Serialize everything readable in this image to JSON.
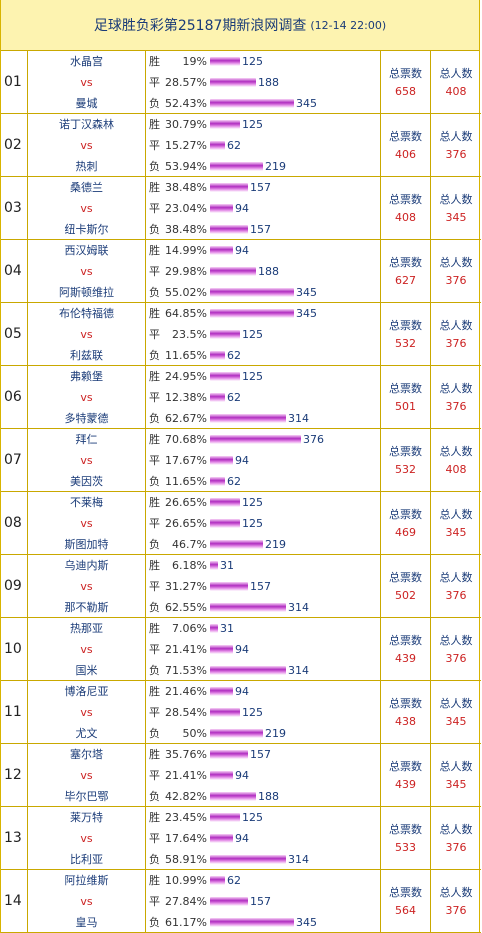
{
  "header": {
    "title": "足球胜负彩第25187期新浪网调查",
    "date": "(12-14 22:00)"
  },
  "labels": {
    "win": "胜",
    "draw": "平",
    "loss": "负",
    "vs": "vs",
    "total_votes": "总票数",
    "total_people": "总人数"
  },
  "colors": {
    "title_bg": "#fdf3b0",
    "border": "#c9a800",
    "team_text": "#1a3b78",
    "accent_red": "#cc2222",
    "bar": "#c64bd6"
  },
  "matches": [
    {
      "idx": "01",
      "home": "水晶宫",
      "away": "曼城",
      "win": {
        "pct": "19%",
        "count": 125
      },
      "draw": {
        "pct": "28.57%",
        "count": 188
      },
      "loss": {
        "pct": "52.43%",
        "count": 345
      },
      "total_votes": "658",
      "total_people": "408"
    },
    {
      "idx": "02",
      "home": "诺丁汉森林",
      "away": "热刺",
      "win": {
        "pct": "30.79%",
        "count": 125
      },
      "draw": {
        "pct": "15.27%",
        "count": 62
      },
      "loss": {
        "pct": "53.94%",
        "count": 219
      },
      "total_votes": "406",
      "total_people": "376"
    },
    {
      "idx": "03",
      "home": "桑德兰",
      "away": "纽卡斯尔",
      "win": {
        "pct": "38.48%",
        "count": 157
      },
      "draw": {
        "pct": "23.04%",
        "count": 94
      },
      "loss": {
        "pct": "38.48%",
        "count": 157
      },
      "total_votes": "408",
      "total_people": "345"
    },
    {
      "idx": "04",
      "home": "西汉姆联",
      "away": "阿斯顿维拉",
      "win": {
        "pct": "14.99%",
        "count": 94
      },
      "draw": {
        "pct": "29.98%",
        "count": 188
      },
      "loss": {
        "pct": "55.02%",
        "count": 345
      },
      "total_votes": "627",
      "total_people": "376"
    },
    {
      "idx": "05",
      "home": "布伦特福德",
      "away": "利兹联",
      "win": {
        "pct": "64.85%",
        "count": 345
      },
      "draw": {
        "pct": "23.5%",
        "count": 125
      },
      "loss": {
        "pct": "11.65%",
        "count": 62
      },
      "total_votes": "532",
      "total_people": "376"
    },
    {
      "idx": "06",
      "home": "弗赖堡",
      "away": "多特蒙德",
      "win": {
        "pct": "24.95%",
        "count": 125
      },
      "draw": {
        "pct": "12.38%",
        "count": 62
      },
      "loss": {
        "pct": "62.67%",
        "count": 314
      },
      "total_votes": "501",
      "total_people": "376"
    },
    {
      "idx": "07",
      "home": "拜仁",
      "away": "美因茨",
      "win": {
        "pct": "70.68%",
        "count": 376
      },
      "draw": {
        "pct": "17.67%",
        "count": 94
      },
      "loss": {
        "pct": "11.65%",
        "count": 62
      },
      "total_votes": "532",
      "total_people": "408"
    },
    {
      "idx": "08",
      "home": "不莱梅",
      "away": "斯图加特",
      "win": {
        "pct": "26.65%",
        "count": 125
      },
      "draw": {
        "pct": "26.65%",
        "count": 125
      },
      "loss": {
        "pct": "46.7%",
        "count": 219
      },
      "total_votes": "469",
      "total_people": "345"
    },
    {
      "idx": "09",
      "home": "乌迪内斯",
      "away": "那不勒斯",
      "win": {
        "pct": "6.18%",
        "count": 31
      },
      "draw": {
        "pct": "31.27%",
        "count": 157
      },
      "loss": {
        "pct": "62.55%",
        "count": 314
      },
      "total_votes": "502",
      "total_people": "376"
    },
    {
      "idx": "10",
      "home": "热那亚",
      "away": "国米",
      "win": {
        "pct": "7.06%",
        "count": 31
      },
      "draw": {
        "pct": "21.41%",
        "count": 94
      },
      "loss": {
        "pct": "71.53%",
        "count": 314
      },
      "total_votes": "439",
      "total_people": "376"
    },
    {
      "idx": "11",
      "home": "博洛尼亚",
      "away": "尤文",
      "win": {
        "pct": "21.46%",
        "count": 94
      },
      "draw": {
        "pct": "28.54%",
        "count": 125
      },
      "loss": {
        "pct": "50%",
        "count": 219
      },
      "total_votes": "438",
      "total_people": "345"
    },
    {
      "idx": "12",
      "home": "塞尔塔",
      "away": "毕尔巴鄂",
      "win": {
        "pct": "35.76%",
        "count": 157
      },
      "draw": {
        "pct": "21.41%",
        "count": 94
      },
      "loss": {
        "pct": "42.82%",
        "count": 188
      },
      "total_votes": "439",
      "total_people": "345"
    },
    {
      "idx": "13",
      "home": "莱万特",
      "away": "比利亚",
      "win": {
        "pct": "23.45%",
        "count": 125
      },
      "draw": {
        "pct": "17.64%",
        "count": 94
      },
      "loss": {
        "pct": "58.91%",
        "count": 314
      },
      "total_votes": "533",
      "total_people": "376"
    },
    {
      "idx": "14",
      "home": "阿拉维斯",
      "away": "皇马",
      "win": {
        "pct": "10.99%",
        "count": 62
      },
      "draw": {
        "pct": "27.84%",
        "count": 157
      },
      "loss": {
        "pct": "61.17%",
        "count": 345
      },
      "total_votes": "564",
      "total_people": "376"
    }
  ]
}
